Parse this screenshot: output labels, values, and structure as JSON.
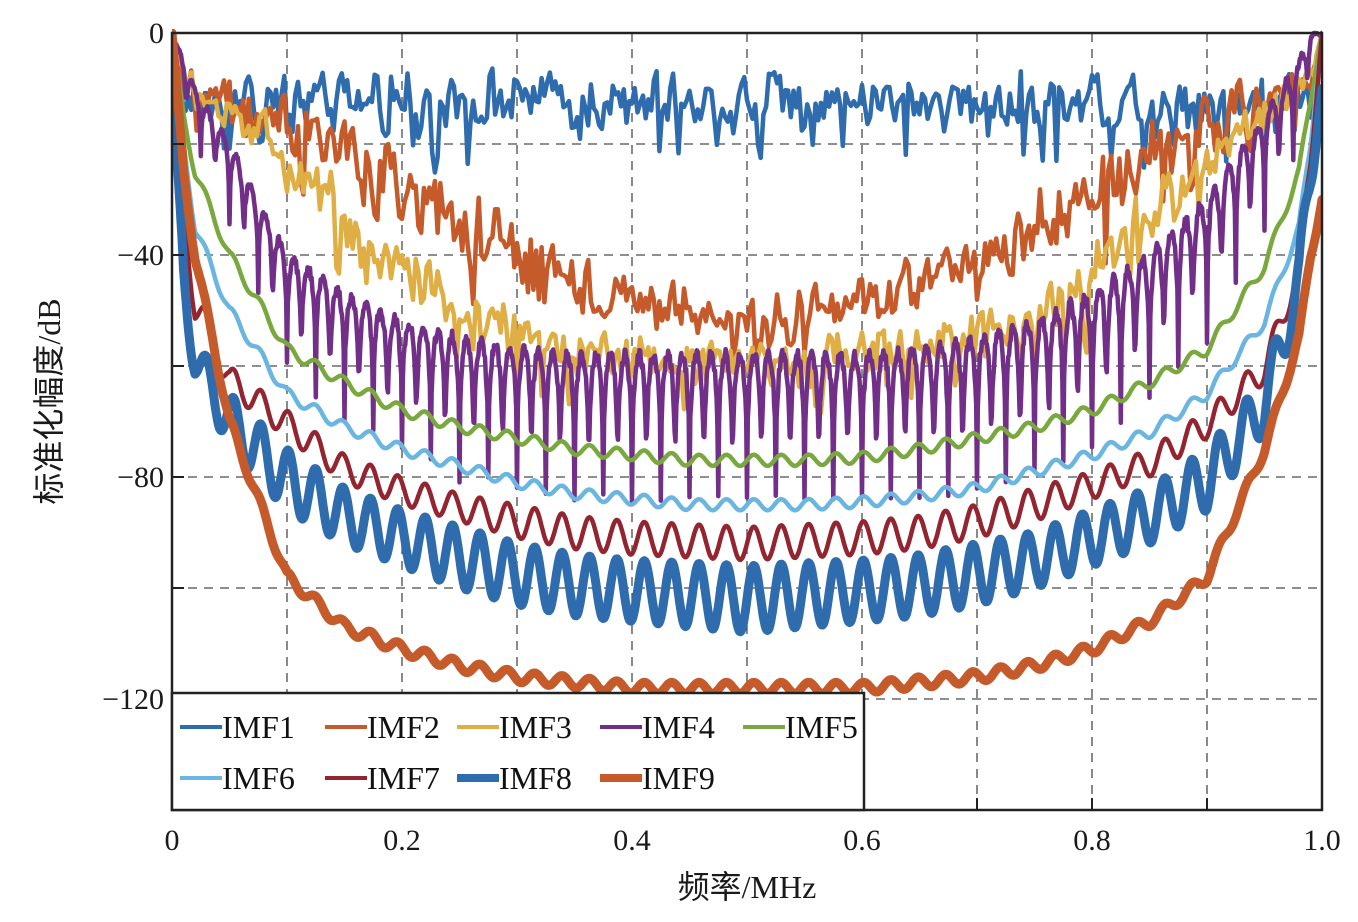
{
  "chart_data": {
    "type": "line",
    "title": "",
    "xlabel": "频率/MHz",
    "ylabel": "标准化幅度/dB",
    "xlim": [
      0,
      1.0
    ],
    "ylim": [
      -140,
      0
    ],
    "x_ticks": [
      0,
      0.2,
      0.4,
      0.6,
      0.8,
      1.0
    ],
    "x_tick_labels": [
      "0",
      "0.2",
      "0.4",
      "0.6",
      "0.8",
      "1.0"
    ],
    "x_minor_grid": [
      0.1,
      0.2,
      0.3,
      0.4,
      0.5,
      0.6,
      0.7,
      0.8,
      0.9
    ],
    "y_ticks": [
      0,
      -20,
      -40,
      -60,
      -80,
      -100,
      -120
    ],
    "y_tick_labels": [
      "0",
      "",
      "−40",
      "",
      "−80",
      "",
      "−120"
    ],
    "grid": true,
    "legend": {
      "placement": "bottom-left",
      "columns": 5
    },
    "x": [
      0,
      0.01,
      0.02,
      0.05,
      0.1,
      0.15,
      0.2,
      0.25,
      0.3,
      0.35,
      0.4,
      0.45,
      0.5,
      0.55,
      0.6,
      0.65,
      0.7,
      0.75,
      0.8,
      0.85,
      0.9,
      0.95,
      0.98,
      0.99,
      1.0
    ],
    "series": [
      {
        "name": "IMF1",
        "color": "#2F6CAD",
        "style": "noisy",
        "weight": "normal",
        "cycles": 0,
        "upper": [
          0,
          -5,
          -5,
          -5,
          -5,
          -5,
          -5,
          -5,
          -5,
          -5,
          -5,
          -5,
          -5,
          -5,
          -5,
          -5,
          -5,
          -5,
          -5,
          -5,
          -5,
          -5,
          -5,
          -5,
          0
        ],
        "lower": [
          0,
          -20,
          -20,
          -20,
          -20,
          -20,
          -20,
          -20,
          -20,
          -20,
          -20,
          -20,
          -20,
          -20,
          -20,
          -20,
          -20,
          -20,
          -20,
          -20,
          -20,
          -20,
          -20,
          -20,
          0
        ]
      },
      {
        "name": "IMF2",
        "color": "#C55A2B",
        "style": "noisy",
        "weight": "normal",
        "cycles": 0,
        "upper": [
          0,
          -5,
          -5,
          -5,
          -8,
          -12,
          -18,
          -25,
          -32,
          -38,
          -42,
          -44,
          -45,
          -44,
          -42,
          -38,
          -32,
          -25,
          -18,
          -12,
          -8,
          -5,
          -5,
          -5,
          0
        ],
        "lower": [
          0,
          -15,
          -15,
          -20,
          -25,
          -30,
          -40,
          -45,
          -50,
          -52,
          -55,
          -56,
          -60,
          -56,
          -55,
          -52,
          -50,
          -45,
          -40,
          -30,
          -25,
          -20,
          -15,
          -15,
          0
        ]
      },
      {
        "name": "IMF3",
        "color": "#DFAF45",
        "style": "noisy",
        "weight": "normal",
        "cycles": 0,
        "upper": [
          0,
          -5,
          -5,
          -10,
          -15,
          -25,
          -35,
          -42,
          -47,
          -50,
          -52,
          -53,
          -54,
          -53,
          -52,
          -50,
          -47,
          -42,
          -35,
          -25,
          -15,
          -8,
          -5,
          -5,
          0
        ],
        "lower": [
          0,
          -15,
          -15,
          -20,
          -30,
          -40,
          -52,
          -60,
          -63,
          -64,
          -65,
          -65,
          -65,
          -65,
          -65,
          -64,
          -63,
          -60,
          -52,
          -40,
          -30,
          -20,
          -15,
          -10,
          0
        ]
      },
      {
        "name": "IMF4",
        "color": "#722F87",
        "style": "spiky",
        "weight": "normal",
        "cycles": 80,
        "upper": [
          0,
          -5,
          -10,
          -20,
          -40,
          -47,
          -52,
          -55,
          -57,
          -58,
          -58,
          -58,
          -58,
          -58,
          -58,
          -57,
          -55,
          -52,
          -47,
          -40,
          -30,
          -15,
          -5,
          0,
          0
        ],
        "lower": [
          0,
          -15,
          -20,
          -35,
          -60,
          -70,
          -75,
          -80,
          -82,
          -84,
          -84,
          -84,
          -84,
          -84,
          -84,
          -83,
          -82,
          -80,
          -75,
          -65,
          -55,
          -35,
          -20,
          -10,
          0
        ]
      },
      {
        "name": "IMF5",
        "color": "#78A83E",
        "style": "ripple",
        "weight": "normal",
        "cycles": 42,
        "upper": [
          0,
          -14,
          -24,
          -39,
          -56,
          -62,
          -67,
          -70,
          -72,
          -74,
          -75,
          -76,
          -76,
          -76,
          -75.5,
          -74,
          -72,
          -70,
          -67,
          -62,
          -56,
          -41,
          -24,
          -11,
          0
        ],
        "lower": [
          0,
          -16,
          -26,
          -41,
          -58,
          -64,
          -69,
          -72,
          -74,
          -76,
          -77,
          -78,
          -78,
          -78,
          -77.5,
          -76,
          -74,
          -72,
          -69,
          -64,
          -58,
          -43,
          -26,
          -13,
          0
        ]
      },
      {
        "name": "IMF6",
        "color": "#6AB6E0",
        "style": "ripple",
        "weight": "normal",
        "cycles": 42,
        "upper": [
          0,
          -19,
          -34,
          -49,
          -64,
          -70,
          -74,
          -77,
          -80,
          -82,
          -83,
          -84,
          -84,
          -84,
          -83.5,
          -82.5,
          -81,
          -78,
          -75,
          -71,
          -64,
          -51,
          -34,
          -19,
          0
        ],
        "lower": [
          0,
          -21,
          -36,
          -51,
          -66,
          -72,
          -76,
          -79,
          -82,
          -84,
          -85,
          -86,
          -86,
          -86,
          -85.5,
          -84.5,
          -83,
          -80,
          -77,
          -73,
          -66,
          -53,
          -36,
          -21,
          0
        ]
      },
      {
        "name": "IMF7",
        "color": "#932530",
        "style": "ripple",
        "weight": "normal",
        "cycles": 42,
        "upper": [
          0,
          -30,
          -45,
          -60,
          -68,
          -76,
          -80,
          -83,
          -85,
          -87,
          -88,
          -88.5,
          -89,
          -88.5,
          -88,
          -87,
          -85,
          -82,
          -79,
          -75,
          -68,
          -58,
          -40,
          -20,
          0
        ],
        "lower": [
          0,
          -35,
          -52,
          -65,
          -73,
          -81,
          -85,
          -88,
          -91,
          -93,
          -94,
          -94.5,
          -95,
          -94.5,
          -94,
          -93,
          -91,
          -88,
          -84,
          -80,
          -73,
          -63,
          -45,
          -25,
          0
        ]
      },
      {
        "name": "IMF8",
        "color": "#2F6CAD",
        "style": "ripple",
        "weight": "bold",
        "cycles": 42,
        "upper": [
          -10,
          -40,
          -55,
          -65,
          -75,
          -82,
          -86,
          -89,
          -92,
          -94,
          -95,
          -95.5,
          -96,
          -95.5,
          -95,
          -94,
          -92,
          -90,
          -86,
          -82,
          -75,
          -62,
          -40,
          -20,
          -10
        ],
        "lower": [
          -10,
          -50,
          -62,
          -75,
          -86,
          -92,
          -96,
          -100,
          -103,
          -105,
          -106,
          -107,
          -108,
          -107,
          -106,
          -105,
          -103,
          -100,
          -96,
          -92,
          -86,
          -72,
          -50,
          -30,
          -10
        ]
      },
      {
        "name": "IMF9",
        "color": "#C55A2B",
        "style": "ripple",
        "weight": "bold",
        "cycles": 42,
        "upper": [
          0,
          -24,
          -39,
          -69,
          -97,
          -106,
          -110,
          -113,
          -115,
          -116,
          -117,
          -117,
          -117,
          -117,
          -117,
          -116,
          -115,
          -113,
          -110,
          -105,
          -97,
          -74,
          -54,
          -39,
          -29
        ],
        "lower": [
          0,
          -26,
          -41,
          -71,
          -99,
          -108,
          -112,
          -115,
          -117,
          -118,
          -119,
          -119,
          -119,
          -119,
          -119,
          -118,
          -117,
          -115,
          -112,
          -107,
          -99,
          -76,
          -56,
          -41,
          -31
        ]
      }
    ]
  }
}
